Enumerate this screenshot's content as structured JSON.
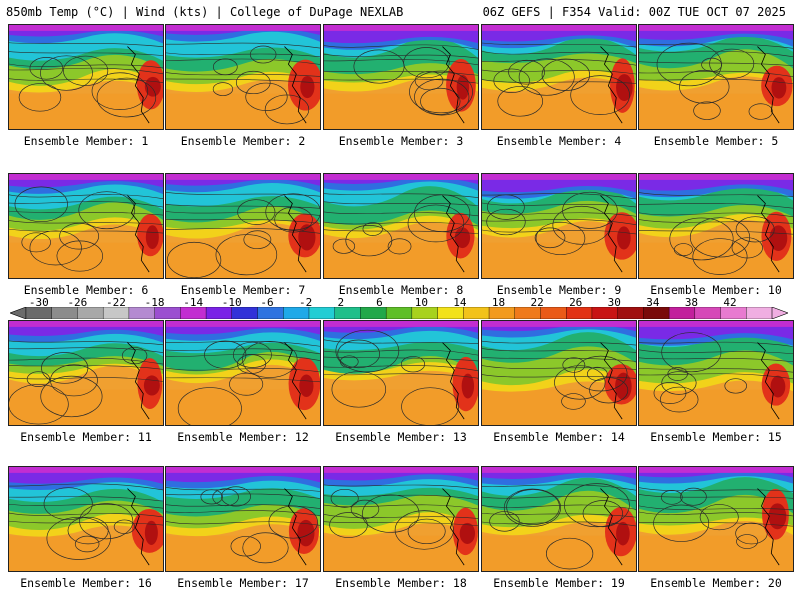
{
  "header": {
    "left_title": "850mb Temp (°C) | Wind (kts) | College of DuPage NEXLAB",
    "right_title": "06Z GEFS | F354 Valid: 00Z TUE OCT 07 2025"
  },
  "colorbar": {
    "ticks": [
      "-30",
      "-26",
      "-22",
      "-18",
      "-14",
      "-10",
      "-6",
      "-2",
      "2",
      "6",
      "10",
      "14",
      "18",
      "22",
      "26",
      "30",
      "34",
      "38",
      "42"
    ],
    "colors": [
      "#6b6b6b",
      "#8c8c8c",
      "#a8a8a8",
      "#c7c7c7",
      "#b48ad1",
      "#9b4fd0",
      "#c22dd1",
      "#7a22e6",
      "#3232d8",
      "#2f73e0",
      "#1fa9e8",
      "#22cdd4",
      "#1fbf8a",
      "#22a84a",
      "#5fbf28",
      "#a8d21e",
      "#f2e21a",
      "#f2c21a",
      "#f29a1e",
      "#ef7a1c",
      "#ea5a18",
      "#e23214",
      "#c81414",
      "#a00f0f",
      "#7a0a0a",
      "#c21f9c",
      "#d648b8",
      "#e87ad0",
      "#f0aee2"
    ]
  },
  "panels": [
    {
      "label": "Ensemble Member: 1"
    },
    {
      "label": "Ensemble Member: 2"
    },
    {
      "label": "Ensemble Member: 3"
    },
    {
      "label": "Ensemble Member: 4"
    },
    {
      "label": "Ensemble Member: 5"
    },
    {
      "label": "Ensemble Member: 6"
    },
    {
      "label": "Ensemble Member: 7"
    },
    {
      "label": "Ensemble Member: 8"
    },
    {
      "label": "Ensemble Member: 9"
    },
    {
      "label": "Ensemble Member: 10"
    },
    {
      "label": "Ensemble Member: 11"
    },
    {
      "label": "Ensemble Member: 12"
    },
    {
      "label": "Ensemble Member: 13"
    },
    {
      "label": "Ensemble Member: 14"
    },
    {
      "label": "Ensemble Member: 15"
    },
    {
      "label": "Ensemble Member: 16"
    },
    {
      "label": "Ensemble Member: 17"
    },
    {
      "label": "Ensemble Member: 18"
    },
    {
      "label": "Ensemble Member: 19"
    },
    {
      "label": "Ensemble Member: 20"
    }
  ]
}
